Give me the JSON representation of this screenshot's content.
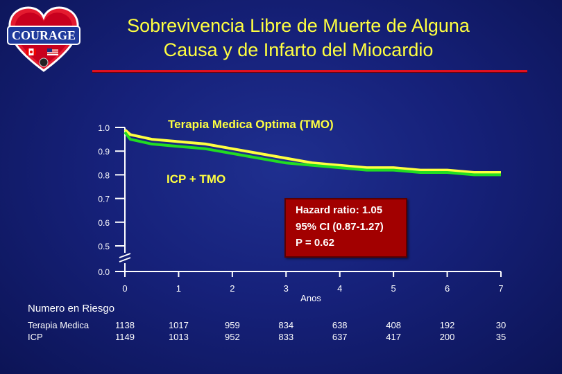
{
  "header": {
    "logo_text": "COURAGE",
    "title_line1": "Sobrevivencia Libre de Muerte de Alguna",
    "title_line2": "Causa y de Infarto del Miocardio"
  },
  "colors": {
    "title": "#ffff40",
    "rule": "#e01020",
    "series_tmo": "#ffff40",
    "series_icp": "#22dd22",
    "box": "#a20000"
  },
  "chart_data": {
    "type": "line",
    "xlabel": "Anos",
    "ylabel": "",
    "x_ticks": [
      "0",
      "1",
      "2",
      "3",
      "4",
      "5",
      "6",
      "7"
    ],
    "y_ticks": [
      "0.0",
      "0.5",
      "0.6",
      "0.7",
      "0.8",
      "0.9",
      "1.0"
    ],
    "y_axis_break": true,
    "xlim": [
      0,
      7
    ],
    "ylim": [
      0.5,
      1.0
    ],
    "series": [
      {
        "name": "Terapia Medica Optima (TMO)",
        "x": [
          0,
          0.1,
          0.5,
          1.0,
          1.5,
          2.0,
          2.5,
          3.0,
          3.5,
          4.0,
          4.5,
          5.0,
          5.5,
          6.0,
          6.5,
          7.0
        ],
        "y": [
          0.99,
          0.97,
          0.95,
          0.94,
          0.93,
          0.91,
          0.89,
          0.87,
          0.85,
          0.84,
          0.83,
          0.83,
          0.82,
          0.82,
          0.81,
          0.81
        ]
      },
      {
        "name": "ICP + TMO",
        "x": [
          0,
          0.1,
          0.5,
          1.0,
          1.5,
          2.0,
          2.5,
          3.0,
          3.5,
          4.0,
          4.5,
          5.0,
          5.5,
          6.0,
          6.5,
          7.0
        ],
        "y": [
          0.98,
          0.95,
          0.93,
          0.92,
          0.91,
          0.89,
          0.87,
          0.85,
          0.84,
          0.83,
          0.82,
          0.82,
          0.81,
          0.81,
          0.8,
          0.8
        ]
      }
    ],
    "annotation": {
      "line1": "Hazard ratio: 1.05",
      "line2": "95% CI (0.87-1.27)",
      "line3": "P = 0.62"
    }
  },
  "risk_table": {
    "title": "Numero en Riesgo",
    "rows": [
      {
        "label": "Terapia Medica",
        "values": [
          "1138",
          "1017",
          "959",
          "834",
          "638",
          "408",
          "192",
          "30"
        ]
      },
      {
        "label": "ICP",
        "values": [
          "1149",
          "1013",
          "952",
          "833",
          "637",
          "417",
          "200",
          "35"
        ]
      }
    ]
  }
}
